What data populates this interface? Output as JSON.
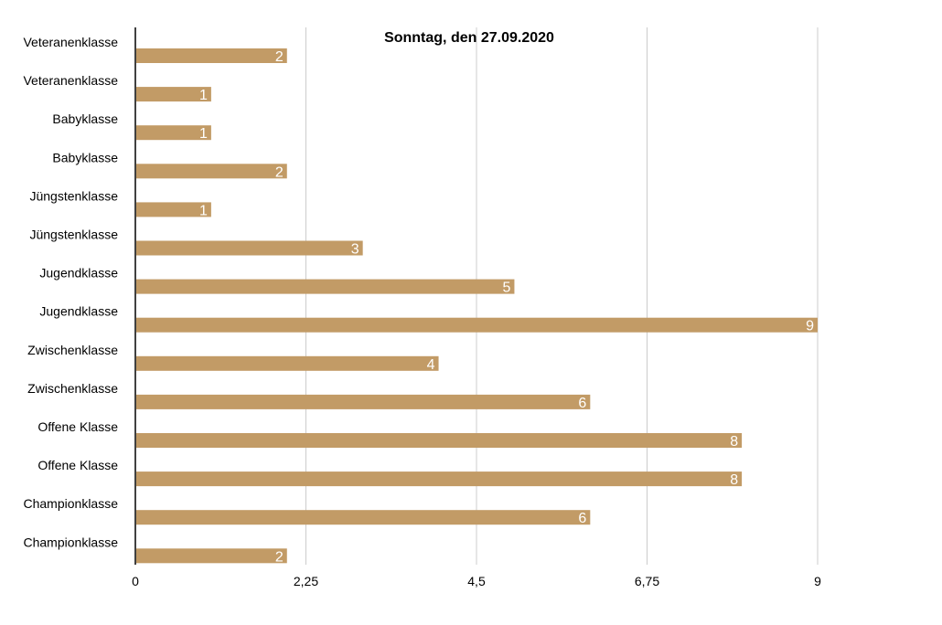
{
  "chart_data": {
    "type": "bar",
    "orientation": "horizontal",
    "title": "Sonntag, den 27.09.2020",
    "categories": [
      "Veteranenklasse",
      "Veteranenklasse",
      "Babyklasse",
      "Babyklasse",
      "Jüngstenklasse",
      "Jüngstenklasse",
      "Jugendklasse",
      "Jugendklasse",
      "Zwischenklasse",
      "Zwischenklasse",
      "Offene Klasse",
      "Offene Klasse",
      "Championklasse",
      "Championklasse"
    ],
    "values": [
      2,
      1,
      1,
      2,
      1,
      3,
      5,
      9,
      4,
      6,
      8,
      8,
      6,
      2
    ],
    "xlim": [
      0,
      9
    ],
    "xticks": [
      0,
      2.25,
      4.5,
      6.75,
      9
    ],
    "xtick_labels": [
      "0",
      "2,25",
      "4,5",
      "6,75",
      "9"
    ],
    "grid": "vertical",
    "legend": "none",
    "bar_color": "#c29b66",
    "grid_color": "#cccccc",
    "data_label_color": "#ffffff"
  }
}
